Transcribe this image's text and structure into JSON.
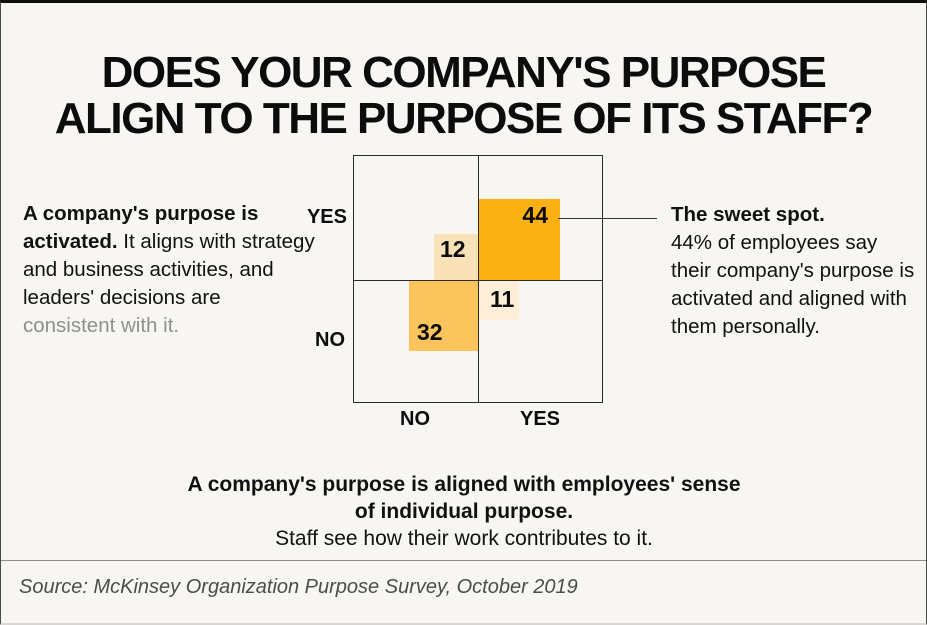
{
  "title": {
    "line1": "DOES YOUR COMPANY'S PURPOSE",
    "line2": "ALIGN TO THE PURPOSE OF ITS STAFF?"
  },
  "chart_data": {
    "type": "heatmap",
    "title": "DOES YOUR COMPANY'S PURPOSE ALIGN TO THE PURPOSE OF ITS STAFF?",
    "description": "2x2 yes/no matrix; square area in each quadrant is proportional to the percentage of employees",
    "unit": "% of employees",
    "grid": true,
    "legend_position": "none",
    "x_axis": {
      "meaning": "A company's purpose is aligned with employees' sense of individual purpose.",
      "categories": [
        "NO",
        "YES"
      ]
    },
    "y_axis": {
      "meaning": "A company's purpose is activated.",
      "categories": [
        "YES",
        "NO"
      ]
    },
    "cells": [
      {
        "y": "YES",
        "x": "NO",
        "value": 12,
        "color": "#fae2b8"
      },
      {
        "y": "YES",
        "x": "YES",
        "value": 44,
        "color": "#fab114"
      },
      {
        "y": "NO",
        "x": "NO",
        "value": 32,
        "color": "#fcc45c"
      },
      {
        "y": "NO",
        "x": "YES",
        "value": 11,
        "color": "#fdefd7"
      }
    ]
  },
  "axis_labels": {
    "left_top": "YES",
    "left_bottom": "NO",
    "bottom_left": "NO",
    "bottom_right": "YES"
  },
  "left_note": {
    "bold": "A company's purpose is activated.",
    "regular": " It aligns with strategy and business activities, and leaders' decisions are ",
    "gray": "consistent with it."
  },
  "right_note": {
    "bold": "The sweet spot.",
    "regular": "44% of employees say their company's purpose is activated and aligned with them personally."
  },
  "caption": {
    "bold": "A company's purpose is aligned with employees' sense of individual purpose.",
    "regular": "Staff see how their work contributes to it."
  },
  "source": "Source: McKinsey Organization Purpose Survey, October 2019",
  "colors": {
    "background": "#f7f6f3",
    "grid_line": "#2b2b2b",
    "cell_44": "#fab114",
    "cell_32": "#fcc45c",
    "cell_12": "#fae2b8",
    "cell_11": "#fdefd7",
    "muted_text": "#8f8f8f",
    "source_text": "#4c4c4c"
  }
}
